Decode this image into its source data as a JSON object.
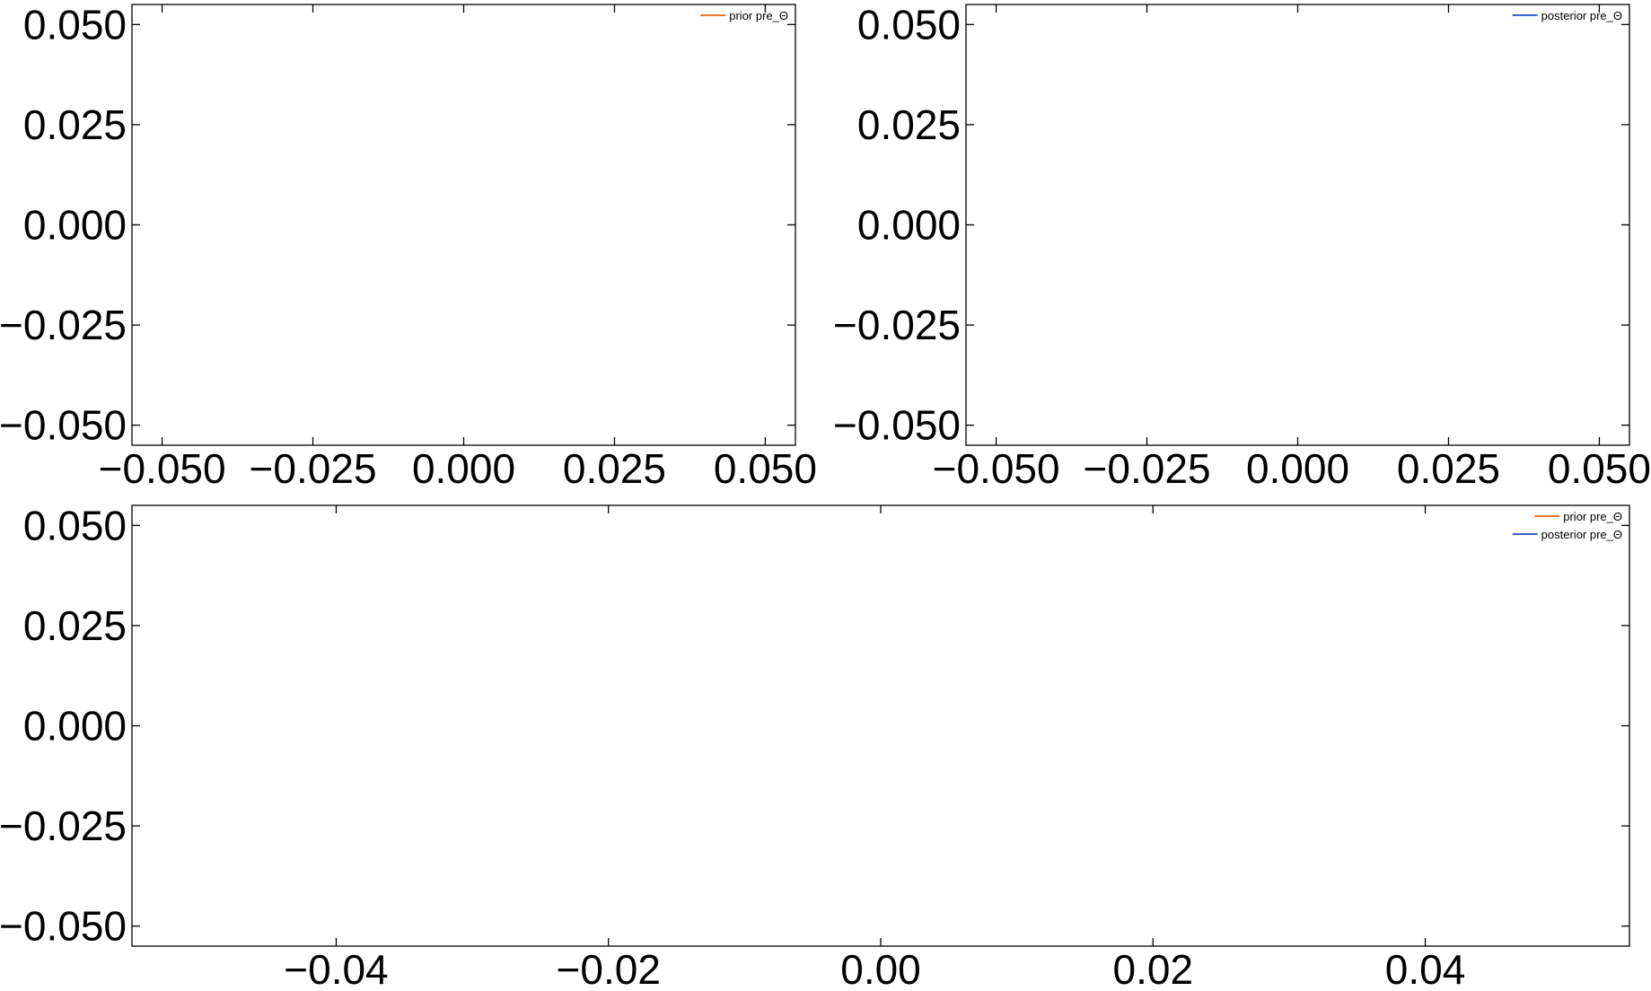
{
  "chart_data": [
    {
      "type": "line",
      "title": "",
      "xlabel": "",
      "ylabel": "",
      "xlim": [
        -0.055,
        0.055
      ],
      "ylim": [
        -0.055,
        0.055
      ],
      "xticks": [
        -0.05,
        -0.025,
        0.0,
        0.025,
        0.05
      ],
      "yticks": [
        -0.05,
        -0.025,
        0.0,
        0.025,
        0.05
      ],
      "xtick_labels": [
        "−0.050",
        "−0.025",
        "0.000",
        "0.025",
        "0.050"
      ],
      "ytick_labels": [
        "−0.050",
        "−0.025",
        "0.000",
        "0.025",
        "0.050"
      ],
      "grid": false,
      "legend_position": "top-right",
      "series": [
        {
          "name": "prior pre_Θ",
          "color": "#e8772e",
          "x": [],
          "y": []
        }
      ]
    },
    {
      "type": "line",
      "title": "",
      "xlabel": "",
      "ylabel": "",
      "xlim": [
        -0.055,
        0.055
      ],
      "ylim": [
        -0.055,
        0.055
      ],
      "xticks": [
        -0.05,
        -0.025,
        0.0,
        0.025,
        0.05
      ],
      "yticks": [
        -0.05,
        -0.025,
        0.0,
        0.025,
        0.05
      ],
      "xtick_labels": [
        "−0.050",
        "−0.025",
        "0.000",
        "0.025",
        "0.050"
      ],
      "ytick_labels": [
        "−0.050",
        "−0.025",
        "0.000",
        "0.025",
        "0.050"
      ],
      "grid": false,
      "legend_position": "top-right",
      "series": [
        {
          "name": "posterior pre_Θ",
          "color": "#3c64c8",
          "x": [],
          "y": []
        }
      ]
    },
    {
      "type": "line",
      "title": "",
      "xlabel": "",
      "ylabel": "",
      "xlim": [
        -0.055,
        0.055
      ],
      "ylim": [
        -0.055,
        0.055
      ],
      "xticks": [
        -0.04,
        -0.02,
        0.0,
        0.02,
        0.04
      ],
      "yticks": [
        -0.05,
        -0.025,
        0.0,
        0.025,
        0.05
      ],
      "xtick_labels": [
        "−0.04",
        "−0.02",
        "0.00",
        "0.02",
        "0.04"
      ],
      "ytick_labels": [
        "−0.050",
        "−0.025",
        "0.000",
        "0.025",
        "0.050"
      ],
      "grid": false,
      "legend_position": "top-right",
      "series": [
        {
          "name": "prior pre_Θ",
          "color": "#e8772e",
          "x": [],
          "y": []
        },
        {
          "name": "posterior pre_Θ",
          "color": "#3c64c8",
          "x": [],
          "y": []
        }
      ]
    }
  ]
}
